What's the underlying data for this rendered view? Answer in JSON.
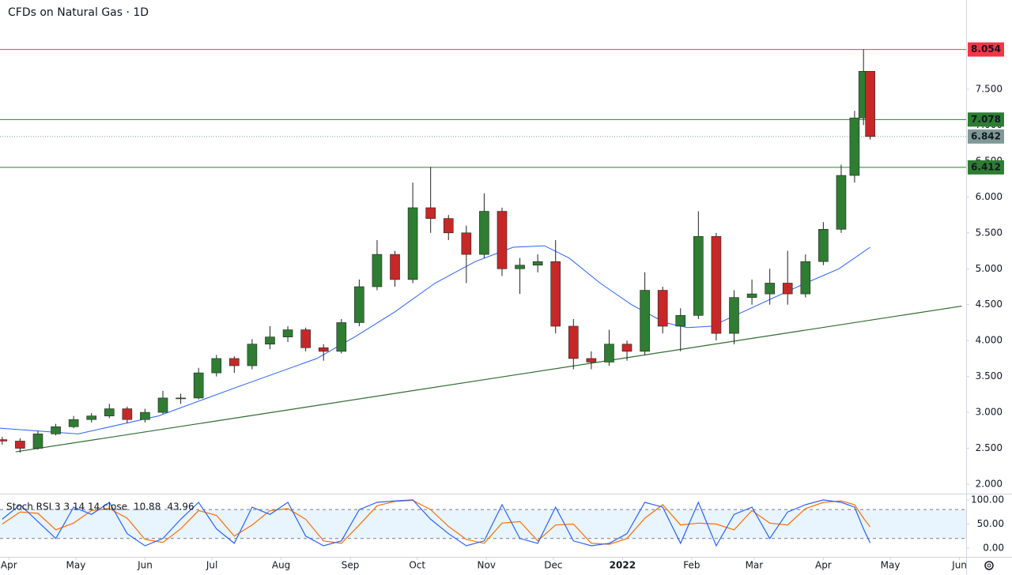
{
  "chart_data": {
    "type": "candlestick",
    "title": "CFDs on Natural Gas · 1D",
    "x": [
      -3,
      5,
      13,
      21,
      29,
      37,
      45,
      53,
      61,
      69,
      77,
      85,
      93,
      101,
      109,
      117,
      125,
      133,
      141,
      149,
      157,
      165,
      173,
      181,
      189,
      197,
      205,
      213,
      221,
      229,
      237,
      245,
      253,
      261,
      269,
      277,
      285,
      293,
      301,
      309,
      317,
      325,
      333,
      341,
      349,
      357,
      365,
      373,
      379,
      383,
      386
    ],
    "open": [
      2.62,
      2.6,
      2.5,
      2.7,
      2.8,
      2.9,
      2.95,
      3.05,
      2.9,
      3.0,
      3.2,
      3.2,
      3.55,
      3.75,
      3.65,
      3.95,
      4.05,
      4.15,
      3.9,
      3.85,
      4.25,
      4.75,
      5.2,
      4.85,
      5.85,
      5.7,
      5.5,
      5.2,
      5.8,
      5.0,
      5.05,
      5.1,
      4.2,
      3.75,
      3.7,
      3.95,
      3.85,
      4.7,
      4.2,
      4.35,
      5.45,
      4.1,
      4.6,
      4.65,
      4.8,
      4.65,
      5.1,
      5.55,
      6.3,
      7.1,
      7.75
    ],
    "high": [
      2.66,
      2.64,
      2.74,
      2.84,
      2.95,
      2.99,
      3.12,
      3.08,
      3.05,
      3.3,
      3.26,
      3.62,
      3.8,
      3.78,
      4.02,
      4.2,
      4.2,
      4.18,
      3.95,
      4.3,
      4.85,
      5.4,
      5.25,
      6.2,
      6.42,
      5.75,
      5.6,
      6.05,
      5.85,
      5.15,
      5.2,
      5.4,
      4.3,
      3.85,
      4.15,
      4.0,
      4.95,
      4.75,
      4.45,
      5.8,
      5.5,
      4.7,
      4.85,
      5.0,
      5.25,
      5.2,
      5.65,
      6.45,
      7.2,
      8.054,
      7.75
    ],
    "low": [
      2.55,
      2.44,
      2.48,
      2.68,
      2.78,
      2.86,
      2.92,
      2.85,
      2.86,
      2.98,
      3.12,
      3.18,
      3.5,
      3.55,
      3.6,
      3.88,
      3.98,
      3.85,
      3.72,
      3.82,
      4.2,
      4.7,
      4.75,
      4.8,
      5.5,
      5.4,
      4.8,
      5.15,
      4.9,
      4.65,
      4.95,
      4.1,
      3.6,
      3.6,
      3.65,
      3.72,
      3.8,
      4.1,
      3.85,
      4.3,
      4.0,
      3.95,
      4.5,
      4.5,
      4.5,
      4.6,
      5.05,
      5.5,
      6.2,
      7.0,
      6.8
    ],
    "close": [
      2.6,
      2.5,
      2.7,
      2.8,
      2.9,
      2.95,
      3.05,
      2.9,
      3.0,
      3.2,
      3.2,
      3.55,
      3.75,
      3.65,
      3.95,
      4.05,
      4.15,
      3.9,
      3.85,
      4.25,
      4.75,
      5.2,
      4.85,
      5.85,
      5.7,
      5.5,
      5.2,
      5.8,
      5.0,
      5.05,
      5.1,
      4.2,
      3.75,
      3.7,
      3.95,
      3.85,
      4.7,
      4.2,
      4.35,
      5.45,
      4.1,
      4.6,
      4.65,
      4.8,
      4.65,
      5.1,
      5.55,
      6.3,
      7.1,
      7.75,
      6.842
    ],
    "up_color": "#2e7d32",
    "down_color": "#c62828",
    "xlim": [
      -4,
      429
    ],
    "xticks": [
      {
        "value": 0,
        "label": "Apr"
      },
      {
        "value": 30,
        "label": "May"
      },
      {
        "value": 61,
        "label": "Jun"
      },
      {
        "value": 91,
        "label": "Jul"
      },
      {
        "value": 122,
        "label": "Aug"
      },
      {
        "value": 153,
        "label": "Sep"
      },
      {
        "value": 183,
        "label": "Oct"
      },
      {
        "value": 214,
        "label": "Nov"
      },
      {
        "value": 244,
        "label": "Dec"
      },
      {
        "value": 275,
        "label": "2022"
      },
      {
        "value": 306,
        "label": "Feb"
      },
      {
        "value": 334,
        "label": "Mar"
      },
      {
        "value": 365,
        "label": "Apr"
      },
      {
        "value": 395,
        "label": "May"
      },
      {
        "value": 426,
        "label": "Jun"
      }
    ],
    "ylim": [
      1.868,
      8.743
    ],
    "yticks": [
      {
        "value": 2,
        "label": "2.000"
      },
      {
        "value": 2.5,
        "label": "2.500"
      },
      {
        "value": 3,
        "label": "3.000"
      },
      {
        "value": 3.5,
        "label": "3.500"
      },
      {
        "value": 4,
        "label": "4.000"
      },
      {
        "value": 4.5,
        "label": "4.500"
      },
      {
        "value": 5,
        "label": "5.000"
      },
      {
        "value": 5.5,
        "label": "5.500"
      },
      {
        "value": 6,
        "label": "6.000"
      },
      {
        "value": 6.5,
        "label": "6.500"
      },
      {
        "value": 7,
        "label": "7.000"
      },
      {
        "value": 7.5,
        "label": "7.500"
      }
    ],
    "ma": {
      "color": "#2962ff",
      "x": [
        -4,
        31,
        67,
        102,
        138,
        155,
        173,
        191,
        209,
        226,
        240,
        251,
        265,
        279,
        294,
        304,
        315,
        329,
        343,
        357,
        372,
        386
      ],
      "values": [
        2.78,
        2.7,
        2.95,
        3.35,
        3.75,
        4.05,
        4.4,
        4.8,
        5.1,
        5.3,
        5.32,
        5.15,
        4.8,
        4.5,
        4.25,
        4.18,
        4.2,
        4.4,
        4.6,
        4.8,
        5.0,
        5.3
      ]
    },
    "trendline": {
      "color": "#2e6b2e",
      "x": [
        3,
        427
      ],
      "values": [
        2.45,
        4.48
      ]
    },
    "levels": [
      {
        "value": 8.054,
        "color": "#f23645"
      },
      {
        "value": 7.078,
        "color": "#2e7d32"
      },
      {
        "value": 6.412,
        "color": "#2e7d32"
      }
    ],
    "last_price": {
      "value": 6.842,
      "color": "#7f9a96"
    },
    "stoch": {
      "title": "Stoch RSI 3 3 14 14 close",
      "ylim": [
        -18,
        113
      ],
      "yticks": [
        {
          "value": 0,
          "label": "0.00"
        },
        {
          "value": 50,
          "label": "50.00"
        },
        {
          "value": 100,
          "label": "100.00"
        }
      ],
      "bands": [
        80,
        20
      ],
      "k": {
        "color": "#2962ff",
        "values": [
          60,
          90,
          55,
          20,
          85,
          70,
          95,
          30,
          5,
          20,
          60,
          95,
          40,
          10,
          85,
          70,
          95,
          25,
          5,
          15,
          80,
          95,
          98,
          100,
          60,
          30,
          5,
          15,
          90,
          20,
          10,
          85,
          15,
          5,
          10,
          30,
          95,
          85,
          10,
          95,
          5,
          70,
          85,
          20,
          75,
          90,
          100,
          95,
          85,
          40,
          10.88
        ]
      },
      "d": {
        "color": "#ff6d00",
        "values": [
          50,
          75,
          72,
          38,
          52,
          78,
          82,
          62,
          18,
          12,
          40,
          78,
          68,
          25,
          48,
          78,
          82,
          60,
          15,
          10,
          48,
          88,
          97,
          99,
          80,
          45,
          18,
          10,
          52,
          55,
          15,
          48,
          50,
          10,
          8,
          20,
          62,
          90,
          48,
          52,
          50,
          38,
          78,
          52,
          48,
          82,
          95,
          98,
          90,
          62,
          43.96
        ]
      }
    }
  }
}
